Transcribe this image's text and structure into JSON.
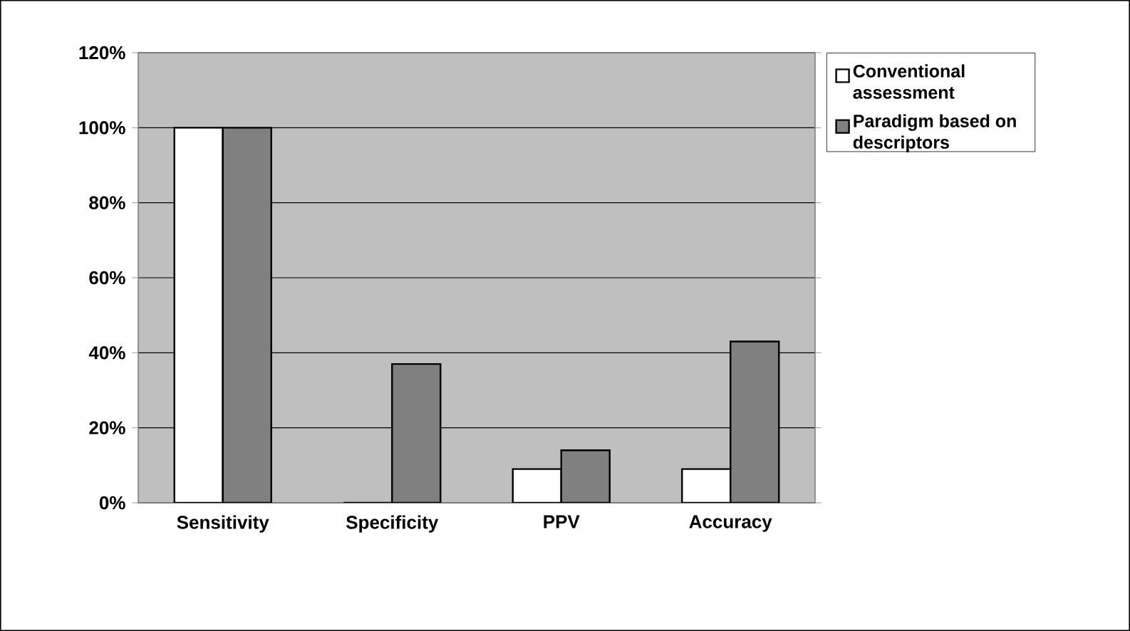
{
  "chart_data": {
    "type": "bar",
    "categories": [
      "Sensitivity",
      "Specificity",
      "PPV",
      "Accuracy"
    ],
    "series": [
      {
        "name": "Conventional assessment",
        "color": "#ffffff",
        "values": [
          100,
          0,
          9,
          9
        ]
      },
      {
        "name": "Paradigm based on descriptors",
        "color": "#808080",
        "values": [
          100,
          37,
          14,
          43
        ]
      }
    ],
    "ylim": [
      0,
      120
    ],
    "yticks": [
      {
        "value": 0,
        "label": "0%"
      },
      {
        "value": 20,
        "label": "20%"
      },
      {
        "value": 40,
        "label": "40%"
      },
      {
        "value": 60,
        "label": "60%"
      },
      {
        "value": 80,
        "label": "80%"
      },
      {
        "value": 100,
        "label": "100%"
      },
      {
        "value": 120,
        "label": "120%"
      }
    ],
    "grid": "y",
    "legend": "right"
  }
}
